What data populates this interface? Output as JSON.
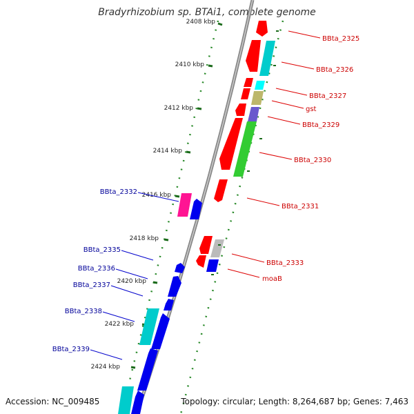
{
  "title": "Bradyrhizobium sp. BTAi1, complete genome",
  "accession": "Accession: NC_009485",
  "topology": "Topology: circular; Length: 8,264,687 bp; Genes: 7,463",
  "ticks": [
    "2408 kbp",
    "2410 kbp",
    "2412 kbp",
    "2414 kbp",
    "2416 kbp",
    "2418 kbp",
    "2420 kbp",
    "2422 kbp",
    "2424 kbp"
  ],
  "right_labels": [
    "BBta_2325",
    "BBta_2326",
    "BBta_2327",
    "gst",
    "BBta_2329",
    "BBta_2330",
    "BBta_2331",
    "BBta_2333",
    "moaB"
  ],
  "left_labels": [
    "BBta_2332",
    "BBta_2335",
    "BBta_2336",
    "BBta_2337",
    "BBta_2338",
    "BBta_2339"
  ],
  "colors": {
    "forward_strand": "#ff0000",
    "reverse_strand": "#0000ee",
    "cyan": "#00cccc",
    "green": "#33cc33",
    "khaki": "#bdb76b",
    "purple": "#6a5acd",
    "magenta": "#ff1493",
    "grey": "#bbbbbb",
    "right_label": "#cc0000",
    "left_label": "#000099"
  }
}
